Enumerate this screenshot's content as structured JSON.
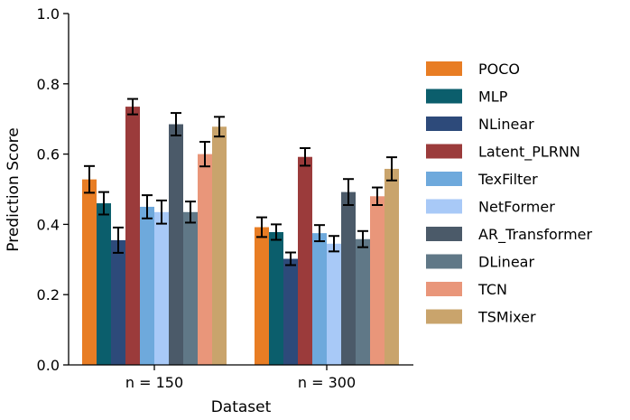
{
  "chart_data": {
    "type": "bar",
    "xlabel": "Dataset",
    "ylabel": "Prediction Score",
    "ylim": [
      0,
      1.0
    ],
    "yticks": [
      "0.0",
      "0.2",
      "0.4",
      "0.6",
      "0.8",
      "1.0"
    ],
    "categories": [
      "n = 150",
      "n = 300"
    ],
    "legend_position": "right",
    "grid": false,
    "series": [
      {
        "name": "POCO",
        "color": "#e87d24",
        "values": [
          0.528,
          0.392
        ],
        "errors": [
          0.038,
          0.028
        ]
      },
      {
        "name": "MLP",
        "color": "#0b5e6c",
        "values": [
          0.46,
          0.378
        ],
        "errors": [
          0.032,
          0.022
        ]
      },
      {
        "name": "NLinear",
        "color": "#2d4a7a",
        "values": [
          0.355,
          0.302
        ],
        "errors": [
          0.036,
          0.018
        ]
      },
      {
        "name": "Latent_PLRNN",
        "color": "#9b3b3b",
        "values": [
          0.735,
          0.592
        ],
        "errors": [
          0.022,
          0.025
        ]
      },
      {
        "name": "TexFilter",
        "color": "#6ea9dc",
        "values": [
          0.45,
          0.375
        ],
        "errors": [
          0.033,
          0.023
        ]
      },
      {
        "name": "NetFormer",
        "color": "#a8c9f7",
        "values": [
          0.435,
          0.345
        ],
        "errors": [
          0.033,
          0.022
        ]
      },
      {
        "name": "AR_Transformer",
        "color": "#4b5a69",
        "values": [
          0.685,
          0.492
        ],
        "errors": [
          0.032,
          0.037
        ]
      },
      {
        "name": "DLinear",
        "color": "#607887",
        "values": [
          0.435,
          0.358
        ],
        "errors": [
          0.03,
          0.023
        ]
      },
      {
        "name": "TCN",
        "color": "#e9967a",
        "values": [
          0.6,
          0.48
        ],
        "errors": [
          0.035,
          0.025
        ]
      },
      {
        "name": "TSMixer",
        "color": "#c9a46c",
        "values": [
          0.678,
          0.558
        ],
        "errors": [
          0.028,
          0.033
        ]
      }
    ]
  }
}
